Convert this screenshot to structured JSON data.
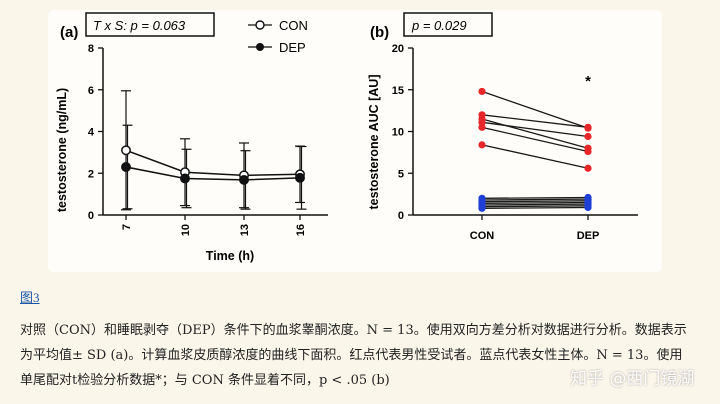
{
  "chart_data": [
    {
      "type": "line",
      "panel": "(a)",
      "stat_annotation": "T x S: p = 0.063",
      "ylabel": "testosterone (ng/mL)",
      "xlabel": "Time (h)",
      "categories": [
        "7",
        "10",
        "13",
        "16"
      ],
      "ylim": [
        0,
        8
      ],
      "yticks": [
        "0",
        "2",
        "4",
        "6",
        "8"
      ],
      "legend": "top",
      "series": [
        {
          "name": "CON",
          "marker": "open-circle",
          "values": [
            3.1,
            2.05,
            1.9,
            1.95
          ],
          "error": [
            2.85,
            1.6,
            1.55,
            1.35
          ]
        },
        {
          "name": "DEP",
          "marker": "filled-circle",
          "values": [
            2.3,
            1.75,
            1.68,
            1.78
          ],
          "error": [
            2.0,
            1.4,
            1.4,
            1.5
          ]
        }
      ]
    },
    {
      "type": "scatter",
      "panel": "(b)",
      "stat_annotation": "p = 0.029",
      "ylabel": "testosterone AUC [AU]",
      "categories": [
        "CON",
        "DEP"
      ],
      "ylim": [
        0,
        20
      ],
      "yticks": [
        "0",
        "5",
        "10",
        "15",
        "20"
      ],
      "significance_marker": "*",
      "pairs": [
        {
          "sex": "male",
          "con": 14.8,
          "dep": 10.4
        },
        {
          "sex": "male",
          "con": 12.0,
          "dep": 10.5
        },
        {
          "sex": "male",
          "con": 11.5,
          "dep": 8.0
        },
        {
          "sex": "male",
          "con": 11.1,
          "dep": 9.4
        },
        {
          "sex": "male",
          "con": 10.5,
          "dep": 7.6
        },
        {
          "sex": "male",
          "con": 8.4,
          "dep": 5.6
        },
        {
          "sex": "female",
          "con": 2.0,
          "dep": 2.1
        },
        {
          "sex": "female",
          "con": 1.8,
          "dep": 1.9
        },
        {
          "sex": "female",
          "con": 1.6,
          "dep": 1.7
        },
        {
          "sex": "female",
          "con": 1.4,
          "dep": 1.5
        },
        {
          "sex": "female",
          "con": 1.2,
          "dep": 1.3
        },
        {
          "sex": "female",
          "con": 1.0,
          "dep": 1.1
        },
        {
          "sex": "female",
          "con": 0.8,
          "dep": 0.9
        }
      ],
      "colors": {
        "male": "#e8262a",
        "female": "#1f3fd6",
        "line": "#1a1a1a"
      }
    }
  ],
  "figure_link": "图3",
  "caption": {
    "line1": "对照（CON）和睡眠剥夺（DEP）条件下的血浆睾酮浓度。N = 13。使用双向方差分析对数据进行分析。数据表示",
    "line2": "为平均值±  SD (a)。计算血浆皮质醇浓度的曲线下面积。红点代表男性受试者。蓝点代表女性主体。N = 13。使用",
    "line3": "单尾配对t检验分析数据*；与 CON 条件显着不同，p < .05 (b)"
  },
  "watermark": "知乎 @西门镜湖"
}
